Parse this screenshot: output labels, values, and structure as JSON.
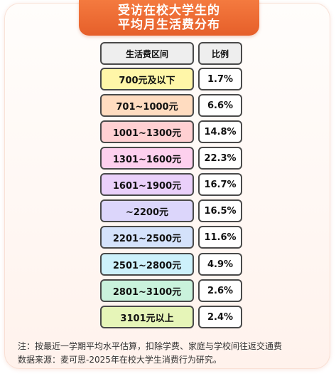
{
  "title": {
    "line1": "受访在校大学生的",
    "line2": "平均月生活费分布"
  },
  "table": {
    "headers": [
      "生活费区间",
      "比例"
    ],
    "rows": [
      {
        "range": "700元及以下",
        "pct": "1.7%",
        "color": "#fff6a8"
      },
      {
        "range": "701~1000元",
        "pct": "6.6%",
        "color": "#ffdcc0"
      },
      {
        "range": "1001~1300元",
        "pct": "14.8%",
        "color": "#ffd0d2"
      },
      {
        "range": "1301~1600元",
        "pct": "22.3%",
        "color": "#fdd0ee"
      },
      {
        "range": "1601~1900元",
        "pct": "16.7%",
        "color": "#ead0fa"
      },
      {
        "range": "~2200元",
        "pct": "16.5%",
        "color": "#dcd6fb"
      },
      {
        "range": "2201~2500元",
        "pct": "11.6%",
        "color": "#d4e2fb"
      },
      {
        "range": "2501~2800元",
        "pct": "4.9%",
        "color": "#cdf1fb"
      },
      {
        "range": "2801~3100元",
        "pct": "2.6%",
        "color": "#c9f2dc"
      },
      {
        "range": "3101元以上",
        "pct": "2.4%",
        "color": "#e6f5b8"
      }
    ]
  },
  "notes": {
    "note1": "注：按最近一学期平均水平估算，扣除学费、家庭与学校间往返交通费",
    "note2": "数据来源：麦可思-2025年在校大学生消费行为研究。"
  }
}
